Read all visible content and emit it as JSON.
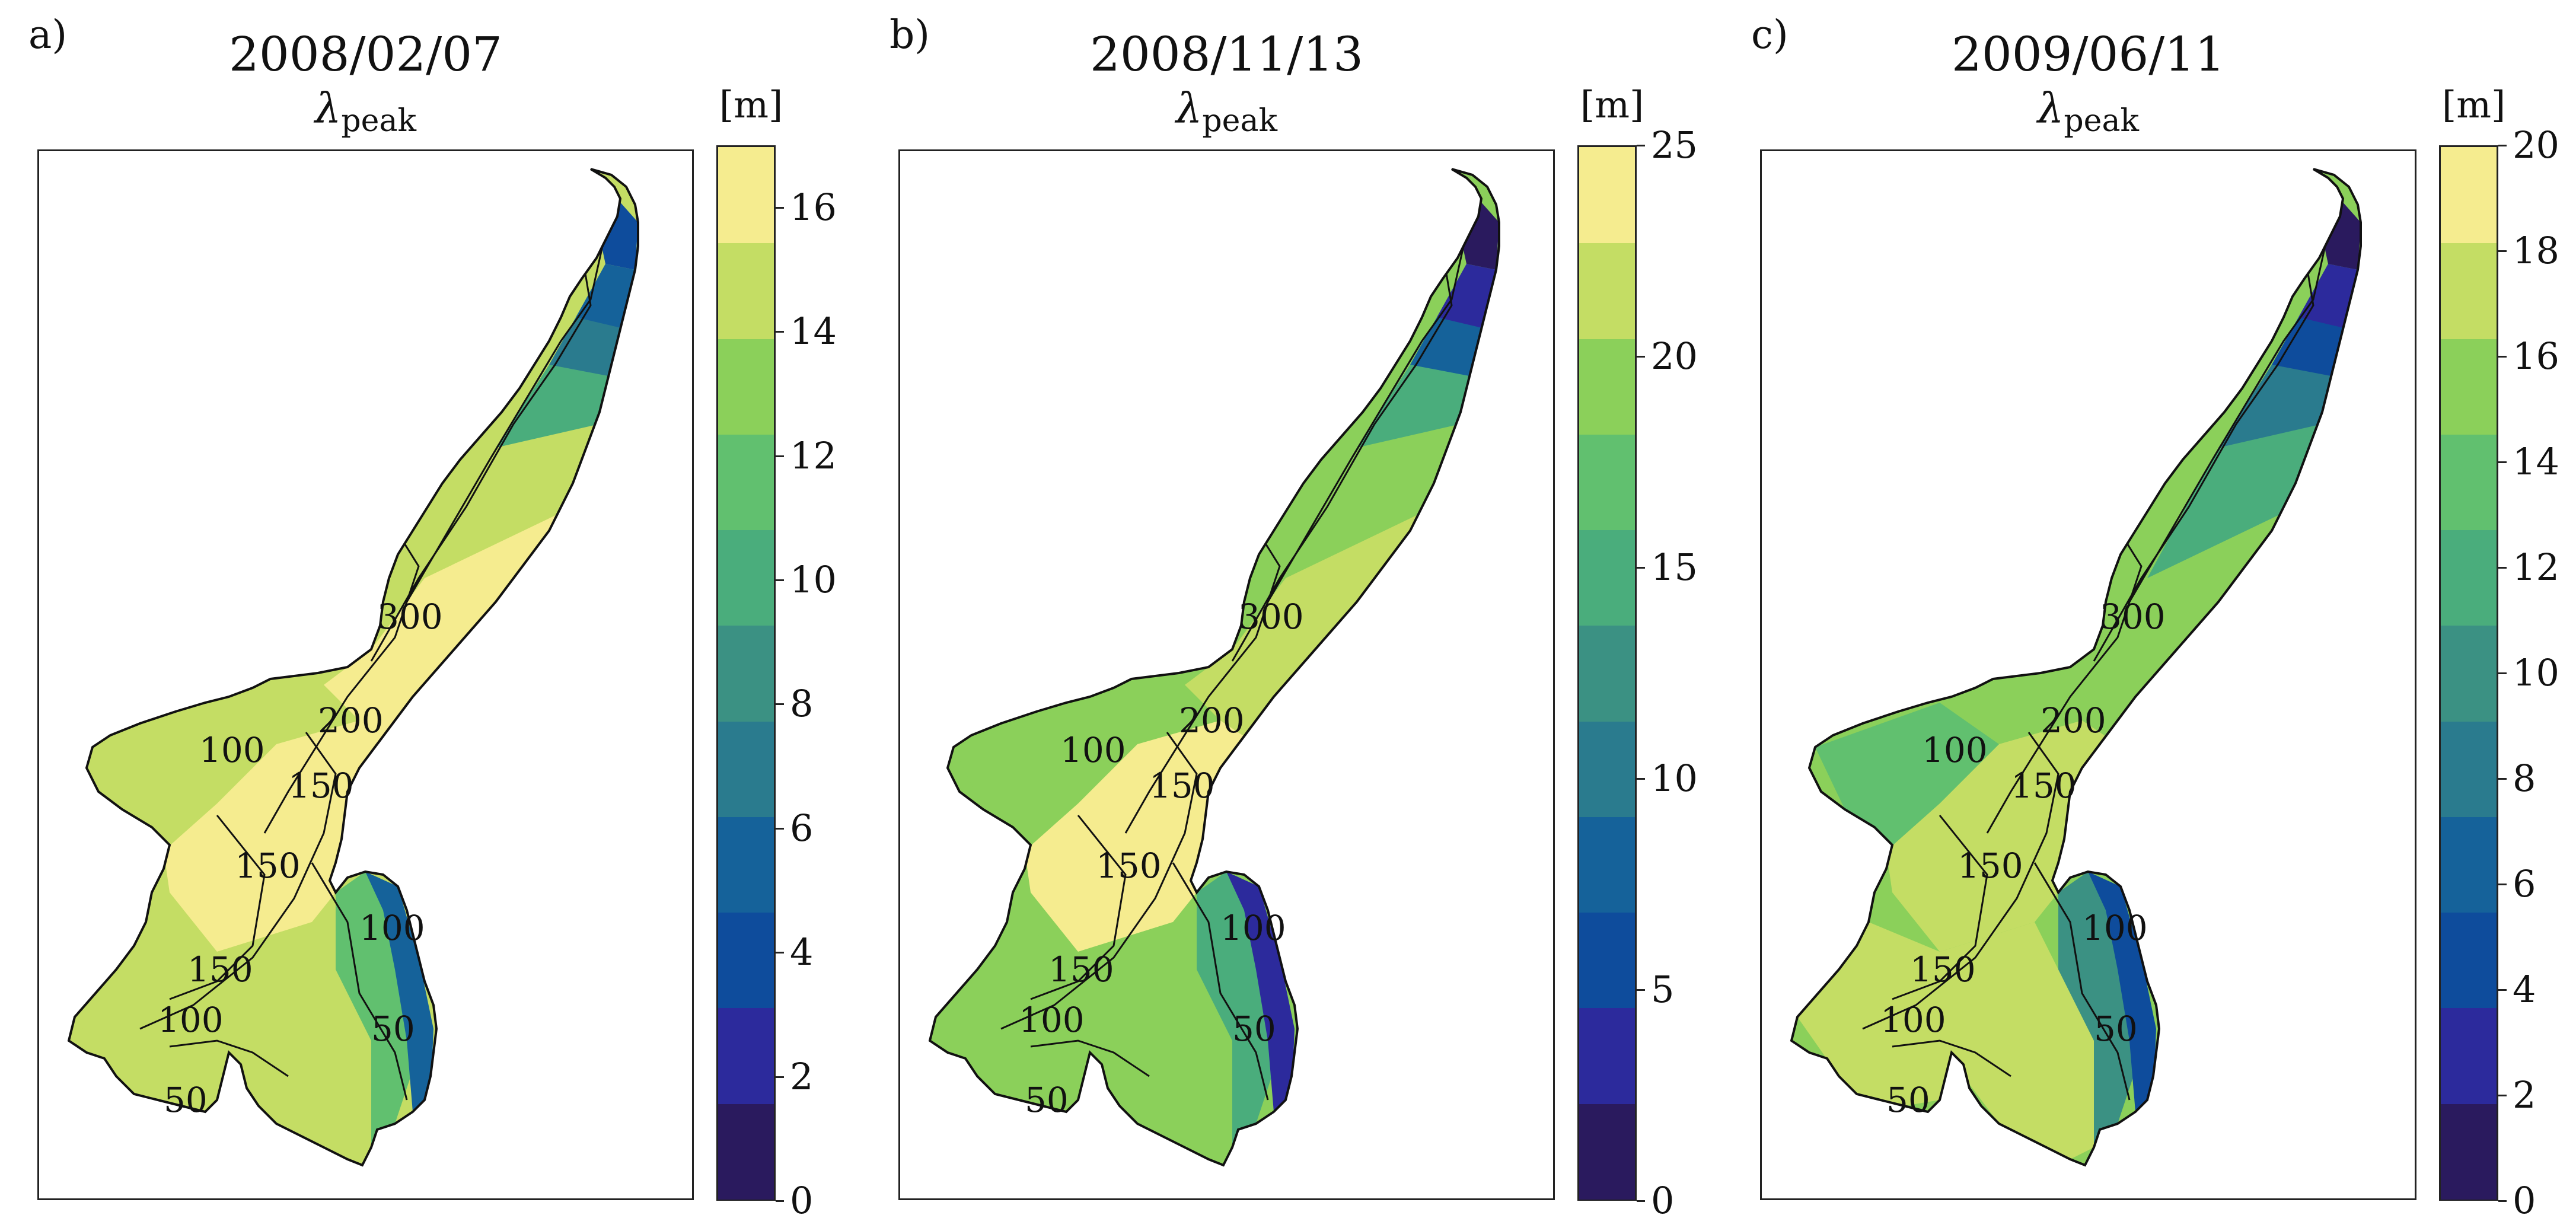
{
  "panels": [
    {
      "letter": "a)",
      "date": "2008/02/07",
      "quantity": "λ",
      "quantity_sub": "peak",
      "unit": "[m]",
      "ticks": [
        "0",
        "2",
        "4",
        "6",
        "8",
        "10",
        "12",
        "14",
        "16"
      ],
      "tick_values": [
        0,
        2,
        4,
        6,
        8,
        10,
        12,
        14,
        16
      ],
      "cmax": 17,
      "contour_labels": [
        "300",
        "200",
        "150",
        "150",
        "150",
        "100",
        "100",
        "100",
        "50",
        "50"
      ]
    },
    {
      "letter": "b)",
      "date": "2008/11/13",
      "quantity": "λ",
      "quantity_sub": "peak",
      "unit": "[m]",
      "ticks": [
        "0",
        "5",
        "10",
        "15",
        "20",
        "25"
      ],
      "tick_values": [
        0,
        5,
        10,
        15,
        20,
        25
      ],
      "cmax": 25,
      "contour_labels": [
        "300",
        "200",
        "150",
        "150",
        "150",
        "100",
        "100",
        "100",
        "50",
        "50"
      ]
    },
    {
      "letter": "c)",
      "date": "2009/06/11",
      "quantity": "λ",
      "quantity_sub": "peak",
      "unit": "[m]",
      "ticks": [
        "0",
        "2",
        "4",
        "6",
        "8",
        "10",
        "12",
        "14",
        "16",
        "18",
        "20"
      ],
      "tick_values": [
        0,
        2,
        4,
        6,
        8,
        10,
        12,
        14,
        16,
        18,
        20
      ],
      "cmax": 20,
      "contour_labels": [
        "300",
        "200",
        "150",
        "150",
        "150",
        "100",
        "100",
        "100",
        "50",
        "50"
      ]
    }
  ],
  "colormap": [
    "#2a1a5e",
    "#2c2a9c",
    "#0e4c9c",
    "#15629a",
    "#2a7b8e",
    "#3b9183",
    "#4aad7c",
    "#61c06f",
    "#8bd05a",
    "#c4dd64",
    "#f5ec8f"
  ]
}
